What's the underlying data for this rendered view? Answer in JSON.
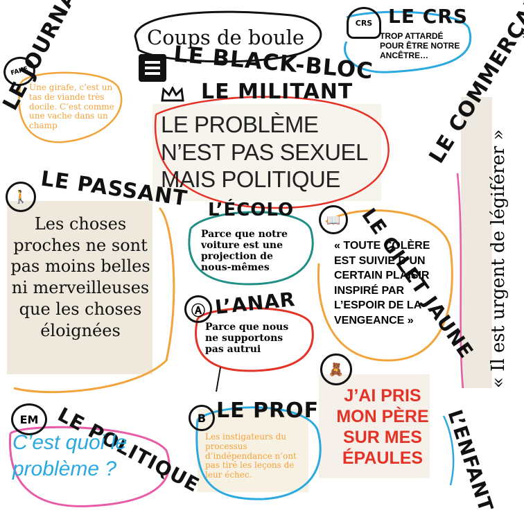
{
  "colors": {
    "ink": "#111111",
    "orange": "#f2a33a",
    "teal": "#1f8f86",
    "blue": "#29a9e0",
    "red": "#e53227",
    "pink": "#e85ba6",
    "beige": "#efe7d9"
  },
  "characters": {
    "black_bloc": {
      "label": "LE BLACK-BLOC",
      "quote": "Coups de boule",
      "icon": "black-square-icon"
    },
    "crs": {
      "label": "LE CRS",
      "quote": "TROP ATTARDÉ POUR ÊTRE NOTRE ANCÊTRE…",
      "badge": "CRS",
      "icon": "police-helmet-icon"
    },
    "journaliste": {
      "label": "LE JOURNALISTE",
      "badge": "FAKE",
      "quote": "Une girafe, c’est un tas de viande très docile. C’est comme une vache dans un champ"
    },
    "militant": {
      "label": "LE MILITANT",
      "quote": "LE PROBLÈME N’EST PAS SEXUEL MAIS POLITIQUE",
      "icon": "crown-icon"
    },
    "commercant": {
      "label": "LE COMMERÇANT",
      "quote": "« Il est urgent de légiférer »"
    },
    "passant": {
      "label": "LE PASSANT",
      "quote": "Les choses proches ne sont pas moins belles ni merveilleuses que les choses éloignées",
      "icon": "walking-person-icon"
    },
    "ecolo": {
      "label": "L’ÉCOLO",
      "quote": "Parce que notre voiture est une projection de nous-mêmes"
    },
    "gilet_jaune": {
      "label": "LE GILET JAUNE",
      "quote": "« TOUTE COLÈRE EST SUIVIE D’UN CERTAIN PLAISIR INSPIRÉ PAR L’ESPOIR DE LA VENGEANCE »",
      "icon": "book-icon"
    },
    "anar": {
      "label": "L’ANAR",
      "quote": "Parce que nous ne supportons pas autrui",
      "icon": "anarchy-icon"
    },
    "politique": {
      "label": "LE POLITIQUE",
      "quote": "C’est quoi le problème ?",
      "badge": "EM"
    },
    "prof": {
      "label": "LE PROF",
      "quote": "Les instigateurs du processus d’indépendance n’ont pas tiré les leçons de leur échec.",
      "icon": "letter-b-icon"
    },
    "enfant": {
      "label": "L’ENFANT",
      "quote": "J’AI PRIS MON PÈRE SUR MES ÉPAULES",
      "icon": "teddy-bear-icon"
    }
  }
}
